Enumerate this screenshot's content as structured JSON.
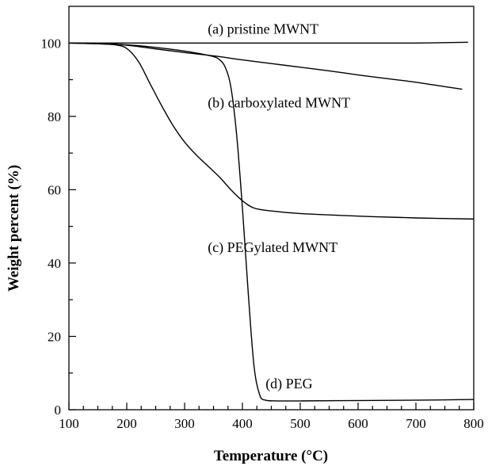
{
  "chart_data": {
    "type": "line",
    "xlabel": "Temperature (°C)",
    "ylabel": "Weight percent (%)",
    "xlim": [
      100,
      800
    ],
    "ylim": [
      0,
      110
    ],
    "x_ticks": [
      100,
      200,
      300,
      400,
      500,
      600,
      700,
      800
    ],
    "y_ticks": [
      0,
      20,
      40,
      60,
      80,
      100
    ],
    "grid": false,
    "legend": "none",
    "series": [
      {
        "name": "(a) pristine MWNT",
        "x": [
          100,
          200,
          300,
          400,
          500,
          600,
          700,
          790
        ],
        "y": [
          100,
          100,
          100,
          100,
          100,
          100,
          100,
          100.2
        ]
      },
      {
        "name": "(b) carboxylated MWNT",
        "x": [
          100,
          150,
          200,
          250,
          300,
          350,
          400,
          450,
          500,
          550,
          600,
          650,
          700,
          750,
          780
        ],
        "y": [
          100,
          99.9,
          99.4,
          98.4,
          97.4,
          96.5,
          95.4,
          94.4,
          93.4,
          92.4,
          91.3,
          90.3,
          89.3,
          88.1,
          87.4
        ]
      },
      {
        "name": "(c) PEGylated MWNT",
        "x": [
          100,
          150,
          180,
          200,
          220,
          240,
          260,
          280,
          300,
          320,
          340,
          360,
          380,
          400,
          420,
          450,
          500,
          600,
          700,
          800
        ],
        "y": [
          100,
          99.8,
          99.5,
          98.5,
          95,
          89,
          83,
          77.5,
          73,
          69.5,
          66.5,
          63.5,
          60,
          57,
          55,
          54.2,
          53.5,
          52.8,
          52.3,
          52
        ]
      },
      {
        "name": "(d) PEG",
        "x": [
          100,
          200,
          250,
          300,
          330,
          350,
          360,
          370,
          380,
          390,
          400,
          410,
          420,
          430,
          440,
          460,
          500,
          600,
          700,
          800
        ],
        "y": [
          100,
          99.5,
          98.8,
          97.8,
          97.0,
          96.3,
          95.5,
          93.5,
          88,
          75,
          55,
          32,
          12,
          4,
          2.6,
          2.4,
          2.4,
          2.5,
          2.6,
          2.8
        ]
      }
    ],
    "annotations": [
      {
        "text": "(a) pristine MWNT",
        "x": 340,
        "y": 102.5,
        "series": 0
      },
      {
        "text": "(b) carboxylated MWNT",
        "x": 340,
        "y": 82.5,
        "series": 1
      },
      {
        "text": "(c) PEGylated MWNT",
        "x": 340,
        "y": 43,
        "series": 2
      },
      {
        "text": "(d) PEG",
        "x": 440,
        "y": 5.8,
        "series": 3
      }
    ]
  }
}
